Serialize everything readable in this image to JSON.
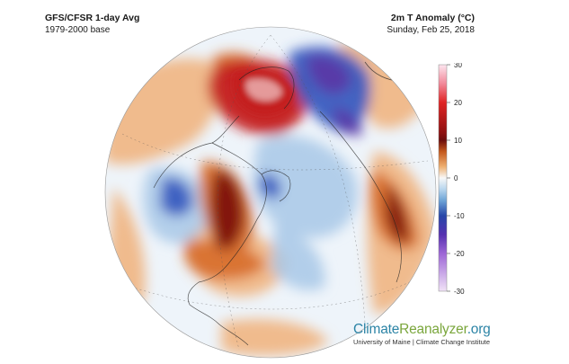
{
  "header": {
    "left_title": "GFS/CFSR 1-day Avg",
    "left_subtitle": "1979-2000 base",
    "right_title": "2m T Anomaly (°C)",
    "right_subtitle": "Sunday, Feb 25, 2018"
  },
  "colorbar": {
    "ticks": [
      {
        "value": 30,
        "label": "30"
      },
      {
        "value": 20,
        "label": "20"
      },
      {
        "value": 10,
        "label": "10"
      },
      {
        "value": 0,
        "label": "0"
      },
      {
        "value": -10,
        "label": "-10"
      },
      {
        "value": -20,
        "label": "-20"
      },
      {
        "value": -30,
        "label": "-30"
      }
    ],
    "range": [
      -30,
      30
    ],
    "stops": [
      {
        "value": 30,
        "color": "#fde6ef"
      },
      {
        "value": 25,
        "color": "#f2899a"
      },
      {
        "value": 20,
        "color": "#e02424"
      },
      {
        "value": 12,
        "color": "#8e1010"
      },
      {
        "value": 10,
        "color": "#6b0c0c"
      },
      {
        "value": 7,
        "color": "#c4581c"
      },
      {
        "value": 3,
        "color": "#eeaf70"
      },
      {
        "value": 0,
        "color": "#f8f8f8"
      },
      {
        "value": -3,
        "color": "#b8d6ee"
      },
      {
        "value": -6,
        "color": "#6da3d6"
      },
      {
        "value": -10,
        "color": "#2646a8"
      },
      {
        "value": -15,
        "color": "#5530b0"
      },
      {
        "value": -20,
        "color": "#9d66d6"
      },
      {
        "value": -30,
        "color": "#f1e3f7"
      }
    ]
  },
  "brand": {
    "part1": "Climate",
    "part2": "Reanalyzer",
    "part3": ".org",
    "subtitle": "University of Maine | Climate Change Institute"
  },
  "map_colors": {
    "ocean_base": "#eef4fa",
    "warm_light": "#f0b07a",
    "warm": "#d8702e",
    "hot": "#c42020",
    "dark_red": "#7e1010",
    "cold_light": "#a8c8e8",
    "cold": "#3a5cc0",
    "very_cold": "#5a3aa8",
    "coastline": "#222222"
  }
}
